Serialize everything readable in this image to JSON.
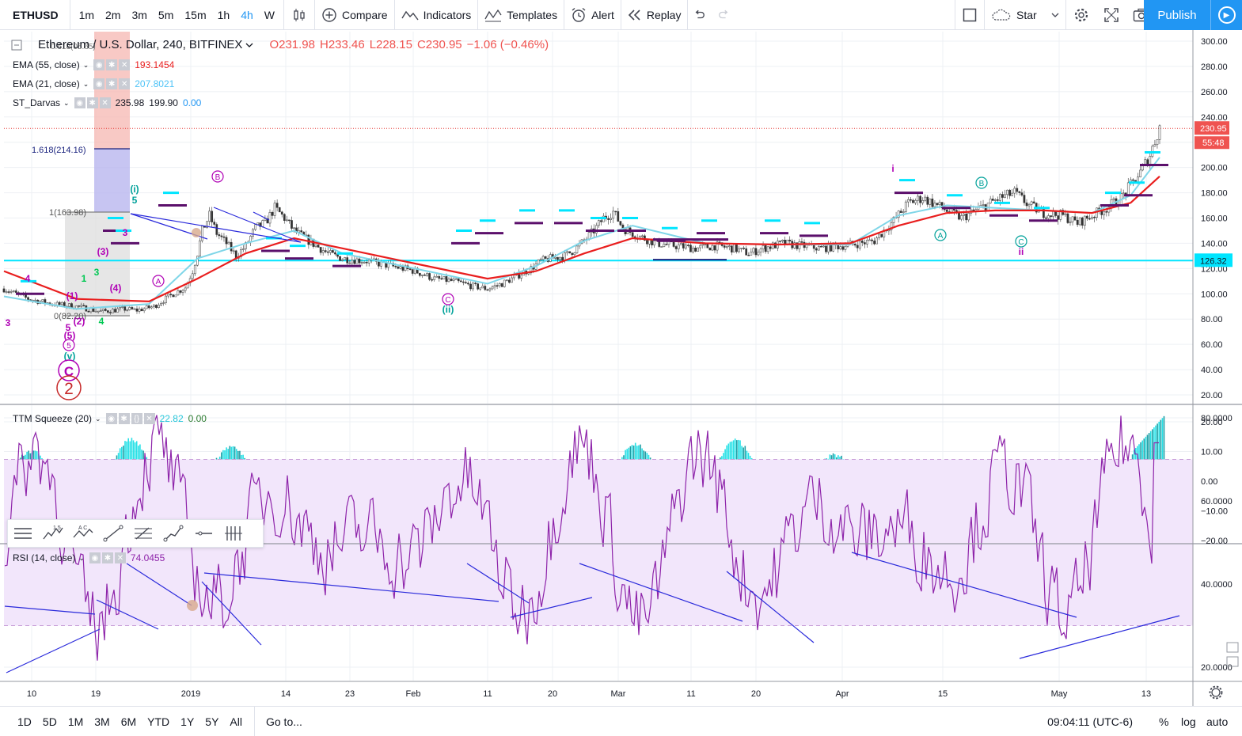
{
  "toolbar": {
    "symbol": "ETHUSD",
    "intervals": [
      "1m",
      "2m",
      "3m",
      "5m",
      "15m",
      "1h",
      "4h",
      "W"
    ],
    "active_interval": "4h",
    "compare_label": "Compare",
    "indicators_label": "Indicators",
    "templates_label": "Templates",
    "alert_label": "Alert",
    "replay_label": "Replay",
    "star_label": "Star",
    "publish_label": "Publish"
  },
  "legend": {
    "title": "Ethereum / U.S. Dollar, 240, BITFINEX",
    "open": "O231.98",
    "high": "H233.46",
    "low": "L228.15",
    "close": "C230.95",
    "change": "−1.06 (−0.46%)",
    "ema55_label": "EMA (55, close)",
    "ema55_value": "193.1454",
    "ema21_label": "EMA (21, close)",
    "ema21_value": "207.8021",
    "darvas_label": "ST_Darvas",
    "darvas_v1": "235.98",
    "darvas_v2": "199.90",
    "darvas_v3": "0.00",
    "ttm_label": "TTM Squeeze (20)",
    "ttm_v1": "22.82",
    "ttm_v2": "0.00",
    "rsi_label": "RSI (14, close)",
    "rsi_value": "74.0455"
  },
  "colors": {
    "ema55": "#e91e1e",
    "ema21": "#7fd6e8",
    "price_line": "#e53935",
    "support_line": "#00e5ff",
    "trend": "#2a2adb",
    "darvas": "#5b0f6b",
    "elliott": "#b000b5",
    "elliott_teal": "#00a19a",
    "rsi": "#8e24aa",
    "rsi_band": "#f2e6fb",
    "ttm_pos": "#26e0e6",
    "ttm_neg": "#e040fb"
  },
  "chart_data": [
    {
      "type": "candlestick",
      "pane": "price",
      "y_ticks": [
        "300.00",
        "280.00",
        "260.00",
        "240.00",
        "220.00",
        "200.00",
        "180.00",
        "160.00",
        "140.00",
        "120.00",
        "100.00",
        "80.00",
        "60.00",
        "40.00",
        "20.00"
      ],
      "ylim": [
        10,
        308
      ],
      "x_ticks": [
        "10",
        "19",
        "2019",
        "14",
        "23",
        "Feb",
        "11",
        "20",
        "Mar",
        "11",
        "20",
        "Apr",
        "15",
        "May",
        "13"
      ],
      "last_price": "230.95",
      "countdown": "55:48",
      "support_level": "126.32",
      "fib_labels": [
        "0.618(05.65)",
        "1.618(214.16)",
        "1(163.98)",
        "0(82.20)"
      ],
      "elliott_labels": [
        "3",
        "4",
        "1",
        "2",
        "3",
        "(1)",
        "(2)",
        "(3)",
        "(4)",
        "(5)",
        "5",
        "5",
        "3",
        "4",
        "(i)",
        "(ii)",
        "(v)",
        "A",
        "B",
        "C",
        "A",
        "B",
        "C",
        "i",
        "ii",
        "C",
        "2"
      ],
      "price_path": [
        [
          0,
          104
        ],
        [
          10,
          96
        ],
        [
          20,
          92
        ],
        [
          30,
          90
        ],
        [
          40,
          86
        ],
        [
          50,
          88
        ],
        [
          55,
          87
        ],
        [
          62,
          90
        ],
        [
          70,
          100
        ],
        [
          75,
          105
        ],
        [
          78,
          118
        ],
        [
          80,
          132
        ],
        [
          82,
          150
        ],
        [
          85,
          162
        ],
        [
          88,
          148
        ],
        [
          92,
          140
        ],
        [
          96,
          130
        ],
        [
          100,
          138
        ],
        [
          104,
          152
        ],
        [
          108,
          156
        ],
        [
          112,
          168
        ],
        [
          116,
          160
        ],
        [
          120,
          150
        ],
        [
          126,
          142
        ],
        [
          134,
          132
        ],
        [
          140,
          128
        ],
        [
          150,
          126
        ],
        [
          160,
          122
        ],
        [
          170,
          118
        ],
        [
          178,
          112
        ],
        [
          186,
          110
        ],
        [
          194,
          106
        ],
        [
          200,
          104
        ],
        [
          206,
          108
        ],
        [
          212,
          114
        ],
        [
          218,
          120
        ],
        [
          222,
          126
        ],
        [
          226,
          128
        ],
        [
          232,
          130
        ],
        [
          236,
          135
        ],
        [
          240,
          142
        ],
        [
          244,
          150
        ],
        [
          248,
          160
        ],
        [
          252,
          165
        ],
        [
          256,
          152
        ],
        [
          262,
          146
        ],
        [
          270,
          140
        ],
        [
          278,
          138
        ],
        [
          286,
          136
        ],
        [
          294,
          138
        ],
        [
          302,
          136
        ],
        [
          308,
          132
        ],
        [
          314,
          136
        ],
        [
          322,
          140
        ],
        [
          330,
          138
        ],
        [
          338,
          136
        ],
        [
          346,
          138
        ],
        [
          354,
          140
        ],
        [
          360,
          142
        ],
        [
          368,
          158
        ],
        [
          374,
          172
        ],
        [
          380,
          176
        ],
        [
          388,
          168
        ],
        [
          396,
          160
        ],
        [
          404,
          168
        ],
        [
          412,
          176
        ],
        [
          418,
          180
        ],
        [
          424,
          170
        ],
        [
          430,
          164
        ],
        [
          438,
          162
        ],
        [
          444,
          156
        ],
        [
          450,
          162
        ],
        [
          456,
          168
        ],
        [
          462,
          176
        ],
        [
          466,
          186
        ],
        [
          470,
          196
        ],
        [
          474,
          210
        ],
        [
          478,
          232
        ]
      ],
      "ema21_path": [
        [
          0,
          98
        ],
        [
          30,
          88
        ],
        [
          60,
          92
        ],
        [
          80,
          128
        ],
        [
          100,
          140
        ],
        [
          120,
          150
        ],
        [
          140,
          132
        ],
        [
          170,
          120
        ],
        [
          200,
          108
        ],
        [
          220,
          122
        ],
        [
          240,
          142
        ],
        [
          260,
          154
        ],
        [
          290,
          140
        ],
        [
          320,
          139
        ],
        [
          350,
          139
        ],
        [
          370,
          162
        ],
        [
          390,
          170
        ],
        [
          410,
          168
        ],
        [
          430,
          166
        ],
        [
          450,
          164
        ],
        [
          466,
          178
        ],
        [
          478,
          208
        ]
      ],
      "ema55_path": [
        [
          0,
          118
        ],
        [
          30,
          96
        ],
        [
          60,
          94
        ],
        [
          80,
          112
        ],
        [
          100,
          132
        ],
        [
          120,
          144
        ],
        [
          140,
          136
        ],
        [
          170,
          124
        ],
        [
          200,
          112
        ],
        [
          220,
          118
        ],
        [
          240,
          132
        ],
        [
          260,
          144
        ],
        [
          290,
          140
        ],
        [
          320,
          139
        ],
        [
          350,
          140
        ],
        [
          370,
          154
        ],
        [
          390,
          164
        ],
        [
          410,
          166
        ],
        [
          430,
          166
        ],
        [
          450,
          164
        ],
        [
          466,
          172
        ],
        [
          478,
          193
        ]
      ]
    },
    {
      "type": "histogram",
      "pane": "ttm_squeeze",
      "y_ticks": [
        "20.00",
        "10.00",
        "0.00",
        "−10.00",
        "−20.00"
      ],
      "ylim": [
        -20,
        24
      ]
    },
    {
      "type": "line",
      "pane": "rsi",
      "y_ticks": [
        "80.0000",
        "60.0000",
        "40.0000",
        "20.0000"
      ],
      "ylim": [
        14,
        90
      ],
      "band": [
        30,
        70
      ]
    }
  ],
  "bottom": {
    "ranges": [
      "1D",
      "5D",
      "1M",
      "3M",
      "6M",
      "YTD",
      "1Y",
      "5Y",
      "All"
    ],
    "goto_label": "Go to...",
    "time": "09:04:11 (UTC-6)",
    "pct_label": "%",
    "log_label": "log",
    "auto_label": "auto"
  }
}
